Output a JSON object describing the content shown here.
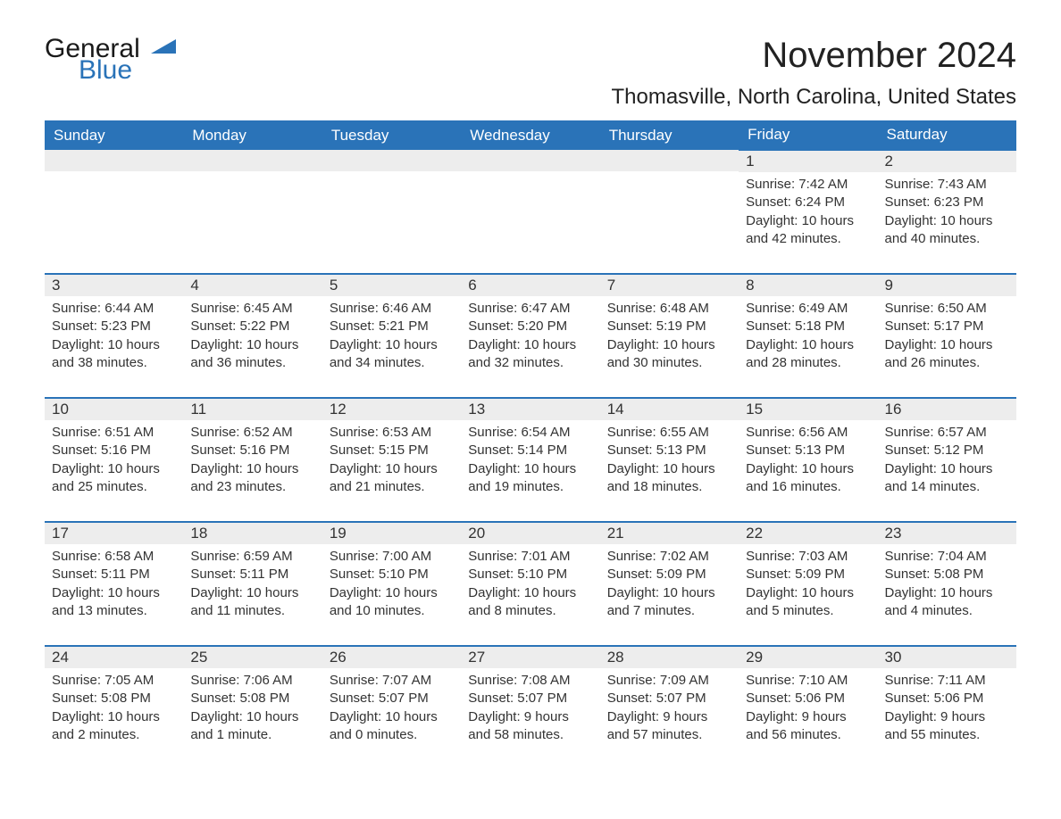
{
  "brand": {
    "general": "General",
    "blue": "Blue"
  },
  "title": "November 2024",
  "location": "Thomasville, North Carolina, United States",
  "colors": {
    "header_bg": "#2a73b8",
    "header_text": "#ffffff",
    "daynum_bg": "#ededed",
    "row_border": "#2a73b8",
    "text": "#333333",
    "brand_blue": "#2a73b8"
  },
  "weekdays": [
    "Sunday",
    "Monday",
    "Tuesday",
    "Wednesday",
    "Thursday",
    "Friday",
    "Saturday"
  ],
  "leading_blanks": 5,
  "days": [
    {
      "n": 1,
      "sunrise": "7:42 AM",
      "sunset": "6:24 PM",
      "daylight": "10 hours and 42 minutes."
    },
    {
      "n": 2,
      "sunrise": "7:43 AM",
      "sunset": "6:23 PM",
      "daylight": "10 hours and 40 minutes."
    },
    {
      "n": 3,
      "sunrise": "6:44 AM",
      "sunset": "5:23 PM",
      "daylight": "10 hours and 38 minutes."
    },
    {
      "n": 4,
      "sunrise": "6:45 AM",
      "sunset": "5:22 PM",
      "daylight": "10 hours and 36 minutes."
    },
    {
      "n": 5,
      "sunrise": "6:46 AM",
      "sunset": "5:21 PM",
      "daylight": "10 hours and 34 minutes."
    },
    {
      "n": 6,
      "sunrise": "6:47 AM",
      "sunset": "5:20 PM",
      "daylight": "10 hours and 32 minutes."
    },
    {
      "n": 7,
      "sunrise": "6:48 AM",
      "sunset": "5:19 PM",
      "daylight": "10 hours and 30 minutes."
    },
    {
      "n": 8,
      "sunrise": "6:49 AM",
      "sunset": "5:18 PM",
      "daylight": "10 hours and 28 minutes."
    },
    {
      "n": 9,
      "sunrise": "6:50 AM",
      "sunset": "5:17 PM",
      "daylight": "10 hours and 26 minutes."
    },
    {
      "n": 10,
      "sunrise": "6:51 AM",
      "sunset": "5:16 PM",
      "daylight": "10 hours and 25 minutes."
    },
    {
      "n": 11,
      "sunrise": "6:52 AM",
      "sunset": "5:16 PM",
      "daylight": "10 hours and 23 minutes."
    },
    {
      "n": 12,
      "sunrise": "6:53 AM",
      "sunset": "5:15 PM",
      "daylight": "10 hours and 21 minutes."
    },
    {
      "n": 13,
      "sunrise": "6:54 AM",
      "sunset": "5:14 PM",
      "daylight": "10 hours and 19 minutes."
    },
    {
      "n": 14,
      "sunrise": "6:55 AM",
      "sunset": "5:13 PM",
      "daylight": "10 hours and 18 minutes."
    },
    {
      "n": 15,
      "sunrise": "6:56 AM",
      "sunset": "5:13 PM",
      "daylight": "10 hours and 16 minutes."
    },
    {
      "n": 16,
      "sunrise": "6:57 AM",
      "sunset": "5:12 PM",
      "daylight": "10 hours and 14 minutes."
    },
    {
      "n": 17,
      "sunrise": "6:58 AM",
      "sunset": "5:11 PM",
      "daylight": "10 hours and 13 minutes."
    },
    {
      "n": 18,
      "sunrise": "6:59 AM",
      "sunset": "5:11 PM",
      "daylight": "10 hours and 11 minutes."
    },
    {
      "n": 19,
      "sunrise": "7:00 AM",
      "sunset": "5:10 PM",
      "daylight": "10 hours and 10 minutes."
    },
    {
      "n": 20,
      "sunrise": "7:01 AM",
      "sunset": "5:10 PM",
      "daylight": "10 hours and 8 minutes."
    },
    {
      "n": 21,
      "sunrise": "7:02 AM",
      "sunset": "5:09 PM",
      "daylight": "10 hours and 7 minutes."
    },
    {
      "n": 22,
      "sunrise": "7:03 AM",
      "sunset": "5:09 PM",
      "daylight": "10 hours and 5 minutes."
    },
    {
      "n": 23,
      "sunrise": "7:04 AM",
      "sunset": "5:08 PM",
      "daylight": "10 hours and 4 minutes."
    },
    {
      "n": 24,
      "sunrise": "7:05 AM",
      "sunset": "5:08 PM",
      "daylight": "10 hours and 2 minutes."
    },
    {
      "n": 25,
      "sunrise": "7:06 AM",
      "sunset": "5:08 PM",
      "daylight": "10 hours and 1 minute."
    },
    {
      "n": 26,
      "sunrise": "7:07 AM",
      "sunset": "5:07 PM",
      "daylight": "10 hours and 0 minutes."
    },
    {
      "n": 27,
      "sunrise": "7:08 AM",
      "sunset": "5:07 PM",
      "daylight": "9 hours and 58 minutes."
    },
    {
      "n": 28,
      "sunrise": "7:09 AM",
      "sunset": "5:07 PM",
      "daylight": "9 hours and 57 minutes."
    },
    {
      "n": 29,
      "sunrise": "7:10 AM",
      "sunset": "5:06 PM",
      "daylight": "9 hours and 56 minutes."
    },
    {
      "n": 30,
      "sunrise": "7:11 AM",
      "sunset": "5:06 PM",
      "daylight": "9 hours and 55 minutes."
    }
  ],
  "labels": {
    "sunrise": "Sunrise: ",
    "sunset": "Sunset: ",
    "daylight": "Daylight: "
  }
}
